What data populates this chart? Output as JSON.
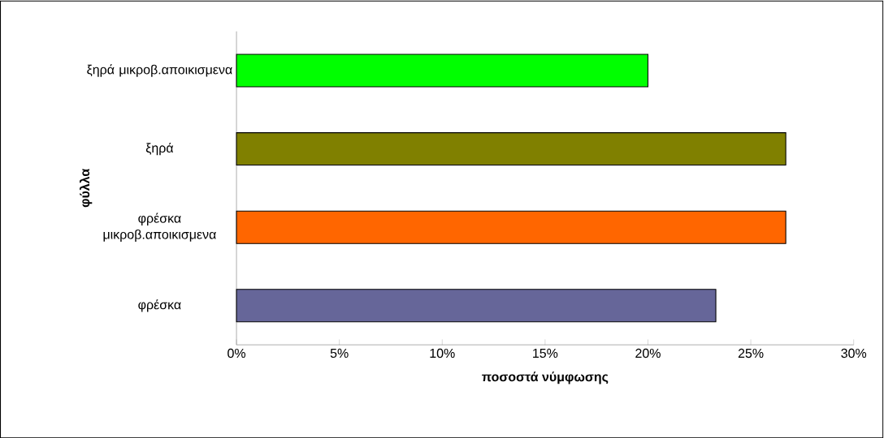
{
  "chart_data": {
    "type": "bar",
    "orientation": "horizontal",
    "categories": [
      "ξηρά μικροβ.αποικισμενα",
      "ξηρά",
      "φρέσκα μικροβ.αποικισμενα",
      "φρέσκα"
    ],
    "values": [
      20,
      26.7,
      26.7,
      23.3
    ],
    "colors": [
      "#00ff00",
      "#808000",
      "#ff6600",
      "#666699"
    ],
    "xlabel": "ποσοστά νύμφωσης",
    "ylabel": "φύλλα",
    "xlim": [
      0,
      30
    ],
    "xticks": [
      {
        "value": 0,
        "label": "0%"
      },
      {
        "value": 5,
        "label": "5%"
      },
      {
        "value": 10,
        "label": "10%"
      },
      {
        "value": 15,
        "label": "15%"
      },
      {
        "value": 20,
        "label": "20%"
      },
      {
        "value": 25,
        "label": "25%"
      },
      {
        "value": 30,
        "label": "30%"
      }
    ],
    "grid": false
  }
}
